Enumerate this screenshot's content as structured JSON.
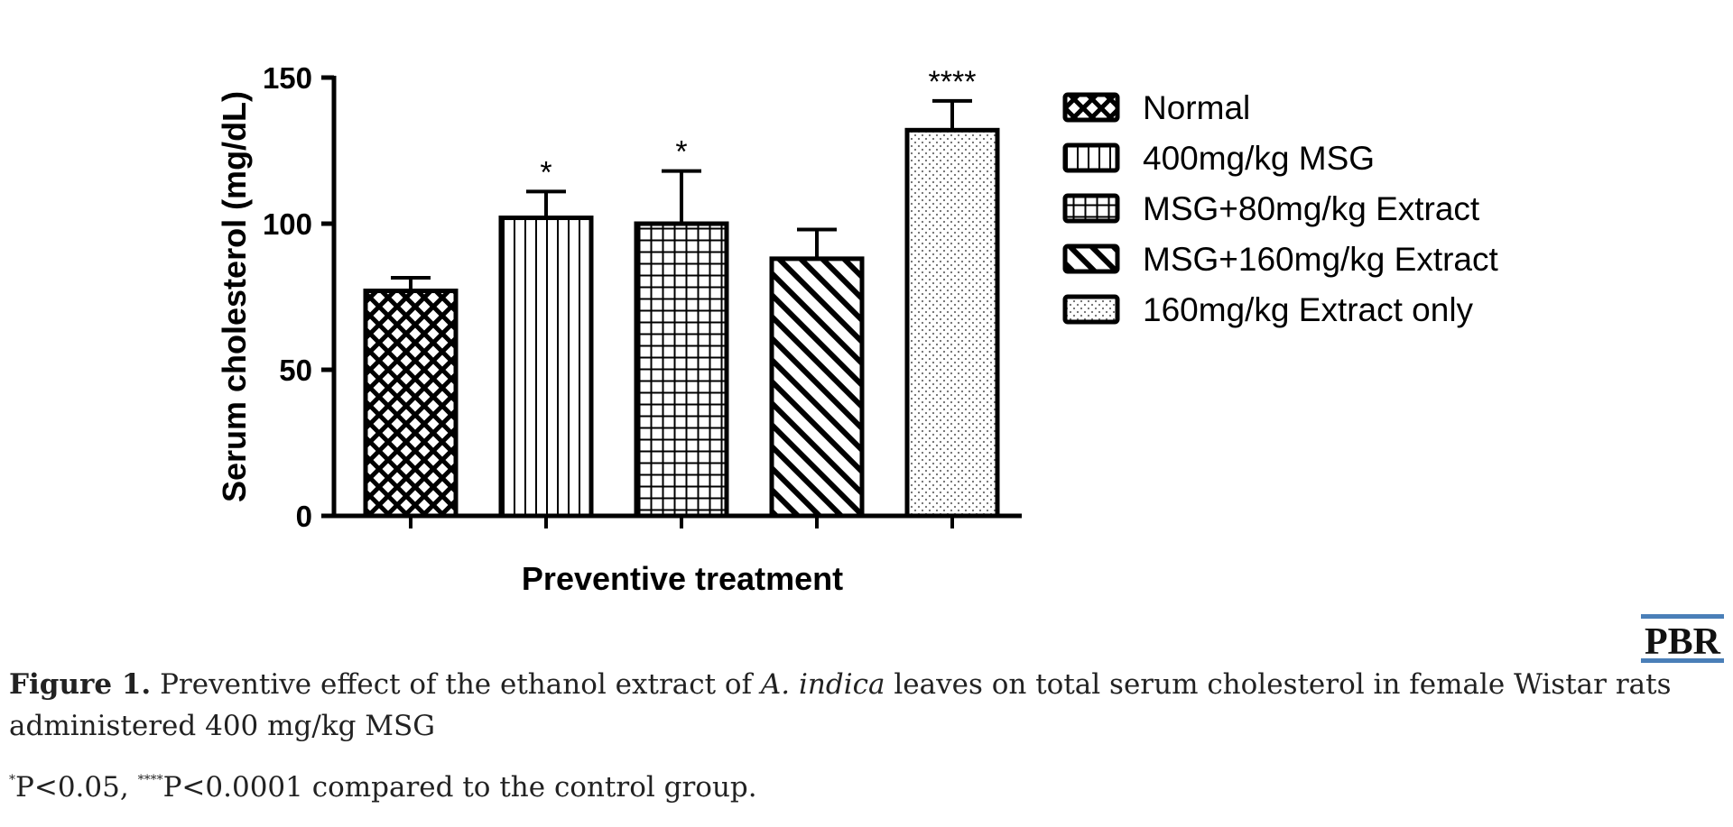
{
  "chart_data": {
    "type": "bar",
    "title": "",
    "xlabel": "Preventive treatment",
    "ylabel": "Serum cholesterol (mg/dL)",
    "ylim": [
      0,
      150
    ],
    "yticks": [
      0,
      50,
      100,
      150
    ],
    "categories": [
      "Normal",
      "400mg/kg MSG",
      "MSG+80mg/kg Extract",
      "MSG+160mg/kg Extract",
      "160mg/kg Extract only"
    ],
    "values": [
      77,
      102,
      100,
      88,
      132
    ],
    "errors": [
      4.5,
      9,
      18,
      10,
      10
    ],
    "significance": [
      "",
      "*",
      "*",
      "",
      "****"
    ],
    "patterns": [
      "crosshatch",
      "vertical-lines",
      "grid",
      "diagonal-lines",
      "dots"
    ],
    "colors": {
      "stroke": "#000000",
      "fill": "#ffffff",
      "dots": "#6a6a6a"
    },
    "legend": [
      "Normal",
      "400mg/kg MSG",
      "MSG+80mg/kg Extract",
      "MSG+160mg/kg Extract",
      "160mg/kg Extract only"
    ],
    "legend_position": "right"
  },
  "caption": {
    "figure_label": "Figure 1.",
    "text_before": " Preventive effect of the ethanol extract of ",
    "species": "A. indica",
    "text_after": " leaves on total serum cholesterol in female Wistar rats administered 400 mg/kg MSG",
    "note_mark_1": "*",
    "note_text_1": "P<0.05, ",
    "note_mark_2": "****",
    "note_text_2": "P<0.0001 compared to the control group."
  },
  "logo": {
    "text": "PBR",
    "color": "#4a7fb8"
  }
}
